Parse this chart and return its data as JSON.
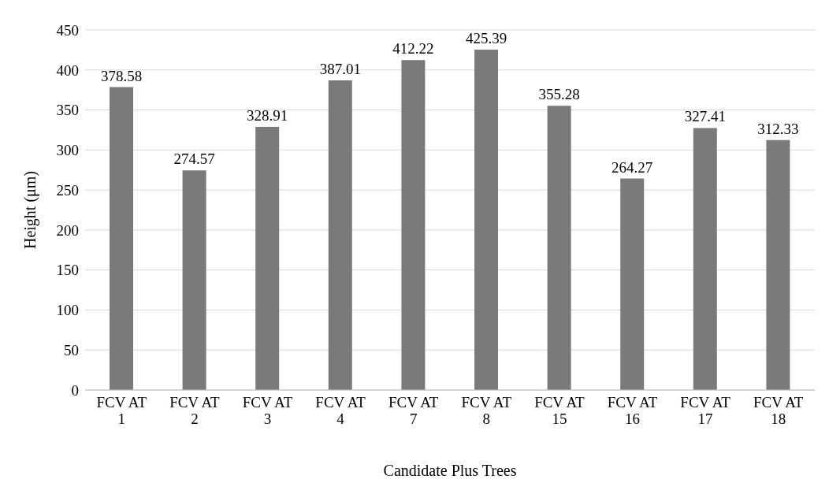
{
  "chart_data": {
    "type": "bar",
    "xlabel": "Candidate Plus Trees",
    "ylabel": "Height (μm)",
    "categories": [
      "FCV AT 1",
      "FCV AT 2",
      "FCV AT 3",
      "FCV AT 4",
      "FCV AT 7",
      "FCV AT 8",
      "FCV AT 15",
      "FCV AT 16",
      "FCV AT 17",
      "FCV AT 18"
    ],
    "values": [
      378.58,
      274.57,
      328.91,
      387.01,
      412.22,
      425.39,
      355.28,
      264.27,
      327.41,
      312.33
    ],
    "color": "#7a7a7a",
    "ylim": [
      0,
      450
    ],
    "yticks": [
      0,
      50,
      100,
      150,
      200,
      250,
      300,
      350,
      400,
      450
    ],
    "grid": "y",
    "data_labels": true,
    "legend": false
  }
}
